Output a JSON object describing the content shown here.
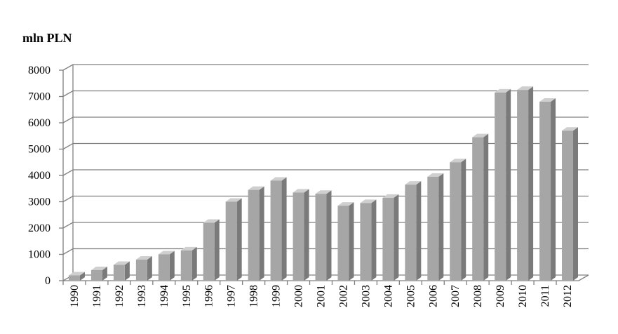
{
  "chart_data": {
    "type": "bar",
    "title": "mln PLN",
    "categories": [
      "1990",
      "1991",
      "1992",
      "1993",
      "1994",
      "1995",
      "1996",
      "1997",
      "1998",
      "1999",
      "2000",
      "2001",
      "2002",
      "2003",
      "2004",
      "2005",
      "2006",
      "2007",
      "2008",
      "2009",
      "2010",
      "2011",
      "2012"
    ],
    "values": [
      200,
      400,
      600,
      800,
      1000,
      1150,
      2200,
      3000,
      3450,
      3800,
      3350,
      3300,
      2850,
      2950,
      3150,
      3650,
      3950,
      4500,
      5450,
      7150,
      7250,
      6800,
      5700
    ],
    "color": "#a6a6a6",
    "ylim": [
      0,
      8000
    ],
    "yticks": [
      0,
      1000,
      2000,
      3000,
      4000,
      5000,
      6000,
      7000,
      8000
    ],
    "grid": true
  }
}
